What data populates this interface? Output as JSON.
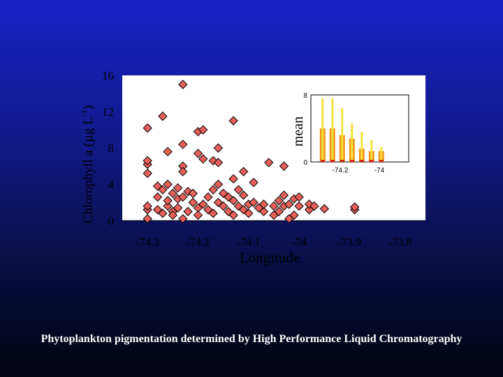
{
  "chart_data": [
    {
      "type": "scatter",
      "xlabel": "Longitude",
      "ylabel": "Chlorophyll a (µg L",
      "ylabel_superscript": "-1",
      "ylabel_suffix": ")",
      "xlim": [
        -74.35,
        -73.75
      ],
      "ylim": [
        0,
        16
      ],
      "xticks": [
        "-74.3",
        "-74.2",
        "-74.1",
        "-74",
        "-73.9",
        "-73.8"
      ],
      "yticks": [
        "0",
        "4",
        "8",
        "12",
        "16"
      ],
      "marker": "diamond",
      "marker_color": "#e8605a",
      "grid": false,
      "background": "#ffffff",
      "points": [
        {
          "x": -74.3,
          "y": 0.2
        },
        {
          "x": -74.3,
          "y": 1.2
        },
        {
          "x": -74.3,
          "y": 1.6
        },
        {
          "x": -74.3,
          "y": 5.2
        },
        {
          "x": -74.3,
          "y": 6.2
        },
        {
          "x": -74.3,
          "y": 6.6
        },
        {
          "x": -74.3,
          "y": 10.2
        },
        {
          "x": -74.28,
          "y": 1.2
        },
        {
          "x": -74.28,
          "y": 2.6
        },
        {
          "x": -74.28,
          "y": 3.8
        },
        {
          "x": -74.27,
          "y": 11.5
        },
        {
          "x": -74.27,
          "y": 3.4
        },
        {
          "x": -74.27,
          "y": 0.8
        },
        {
          "x": -74.26,
          "y": 4.0
        },
        {
          "x": -74.26,
          "y": 7.6
        },
        {
          "x": -74.26,
          "y": 1.6
        },
        {
          "x": -74.26,
          "y": 2.2
        },
        {
          "x": -74.25,
          "y": 3.0
        },
        {
          "x": -74.25,
          "y": 1.0
        },
        {
          "x": -74.25,
          "y": 0.6
        },
        {
          "x": -74.24,
          "y": 3.6
        },
        {
          "x": -74.24,
          "y": 2.4
        },
        {
          "x": -74.24,
          "y": 1.4
        },
        {
          "x": -74.23,
          "y": 15.0
        },
        {
          "x": -74.23,
          "y": 8.4
        },
        {
          "x": -74.23,
          "y": 6.0
        },
        {
          "x": -74.23,
          "y": 5.4
        },
        {
          "x": -74.23,
          "y": 2.6
        },
        {
          "x": -74.23,
          "y": 0.2
        },
        {
          "x": -74.22,
          "y": 3.2
        },
        {
          "x": -74.22,
          "y": 1.0
        },
        {
          "x": -74.21,
          "y": 2.0
        },
        {
          "x": -74.21,
          "y": 3.0
        },
        {
          "x": -74.2,
          "y": 9.8
        },
        {
          "x": -74.2,
          "y": 7.4
        },
        {
          "x": -74.2,
          "y": 1.4
        },
        {
          "x": -74.2,
          "y": 0.6
        },
        {
          "x": -74.19,
          "y": 10.0
        },
        {
          "x": -74.19,
          "y": 6.8
        },
        {
          "x": -74.19,
          "y": 1.8
        },
        {
          "x": -74.18,
          "y": 2.6
        },
        {
          "x": -74.18,
          "y": 1.2
        },
        {
          "x": -74.17,
          "y": 6.6
        },
        {
          "x": -74.17,
          "y": 3.4
        },
        {
          "x": -74.17,
          "y": 0.8
        },
        {
          "x": -74.16,
          "y": 8.0
        },
        {
          "x": -74.16,
          "y": 6.4
        },
        {
          "x": -74.16,
          "y": 4.0
        },
        {
          "x": -74.16,
          "y": 2.0
        },
        {
          "x": -74.15,
          "y": 3.0
        },
        {
          "x": -74.15,
          "y": 1.6
        },
        {
          "x": -74.14,
          "y": 2.6
        },
        {
          "x": -74.14,
          "y": 1.0
        },
        {
          "x": -74.13,
          "y": 11.0
        },
        {
          "x": -74.13,
          "y": 4.6
        },
        {
          "x": -74.13,
          "y": 2.2
        },
        {
          "x": -74.13,
          "y": 0.6
        },
        {
          "x": -74.12,
          "y": 3.4
        },
        {
          "x": -74.12,
          "y": 1.6
        },
        {
          "x": -74.11,
          "y": 5.4
        },
        {
          "x": -74.11,
          "y": 2.8
        },
        {
          "x": -74.11,
          "y": 1.2
        },
        {
          "x": -74.1,
          "y": 1.8
        },
        {
          "x": -74.1,
          "y": 0.8
        },
        {
          "x": -74.09,
          "y": 4.2
        },
        {
          "x": -74.09,
          "y": 2.0
        },
        {
          "x": -74.08,
          "y": 1.4
        },
        {
          "x": -74.07,
          "y": 1.0
        },
        {
          "x": -74.07,
          "y": 1.8
        },
        {
          "x": -74.06,
          "y": 6.4
        },
        {
          "x": -74.05,
          "y": 1.6
        },
        {
          "x": -74.05,
          "y": 0.6
        },
        {
          "x": -74.04,
          "y": 2.2
        },
        {
          "x": -74.04,
          "y": 1.0
        },
        {
          "x": -74.03,
          "y": 6.0
        },
        {
          "x": -74.03,
          "y": 2.8
        },
        {
          "x": -74.03,
          "y": 1.6
        },
        {
          "x": -74.02,
          "y": 1.8
        },
        {
          "x": -74.02,
          "y": 0.2
        },
        {
          "x": -74.01,
          "y": 2.4
        },
        {
          "x": -74.01,
          "y": 0.6
        },
        {
          "x": -74.0,
          "y": 1.6
        },
        {
          "x": -74.0,
          "y": 2.6
        },
        {
          "x": -73.98,
          "y": 1.2
        },
        {
          "x": -73.98,
          "y": 1.8
        },
        {
          "x": -73.97,
          "y": 1.6
        },
        {
          "x": -73.95,
          "y": 1.3
        },
        {
          "x": -73.89,
          "y": 1.2
        },
        {
          "x": -73.89,
          "y": 1.5
        }
      ]
    },
    {
      "type": "bar",
      "ylabel": "mean",
      "ylim": [
        0,
        8
      ],
      "yticks": [
        "0",
        "8"
      ],
      "xticks": [
        "-74.2",
        "-74"
      ],
      "xlim": [
        -74.35,
        -73.85
      ],
      "colors": {
        "tall": "#f5e03a",
        "short": "#f09418",
        "base": "#d8201a"
      },
      "bars": [
        {
          "x": -74.29,
          "tall": 7.6,
          "short": 4.0
        },
        {
          "x": -74.24,
          "tall": 7.6,
          "short": 4.0
        },
        {
          "x": -74.19,
          "tall": 6.4,
          "short": 3.2
        },
        {
          "x": -74.14,
          "tall": 4.6,
          "short": 2.8
        },
        {
          "x": -74.09,
          "tall": 3.6,
          "short": 1.6
        },
        {
          "x": -74.04,
          "tall": 2.6,
          "short": 1.3
        },
        {
          "x": -73.99,
          "tall": 1.8,
          "short": 1.3
        }
      ]
    }
  ],
  "footer": {
    "caption": "Phytoplankton pigmentation determined by High Performance Liquid Chromatography"
  }
}
